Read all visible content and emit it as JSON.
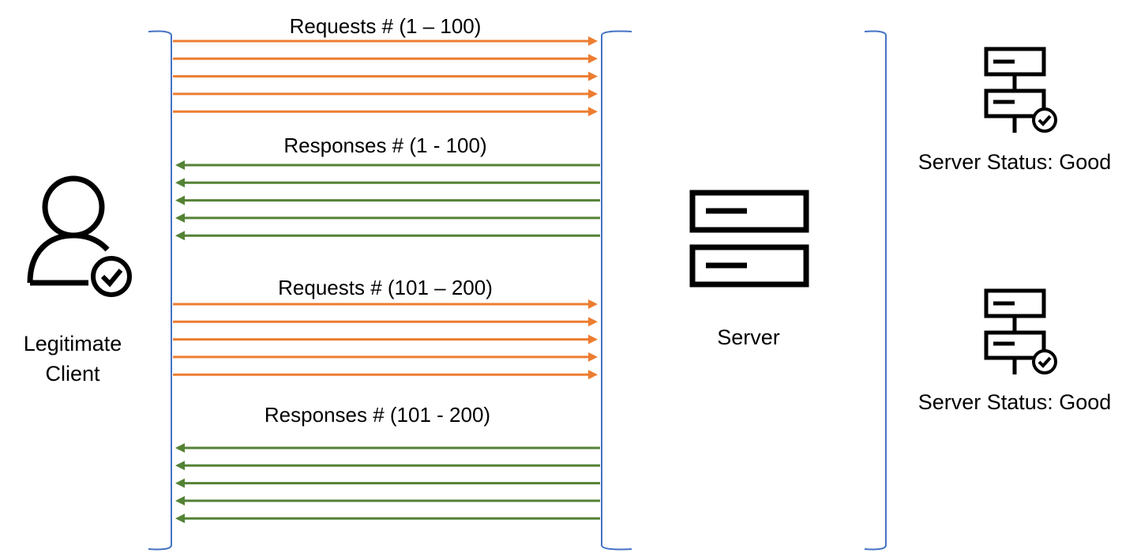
{
  "colors": {
    "request": "#ED7D31",
    "response": "#548235",
    "bracket": "#4472C4",
    "icon": "#000000"
  },
  "client": {
    "icon": "user-check-icon",
    "label_line1": "Legitimate",
    "label_line2": "Client"
  },
  "server": {
    "icon": "server-icon",
    "label": "Server"
  },
  "flows": [
    {
      "label": "Requests # (1 – 100)",
      "direction": "to-server",
      "kind": "request",
      "arrows": 5
    },
    {
      "label": "Responses # (1 - 100)",
      "direction": "to-client",
      "kind": "response",
      "arrows": 5
    },
    {
      "label": "Requests # (101 – 200)",
      "direction": "to-server",
      "kind": "request",
      "arrows": 5
    },
    {
      "label": "Responses # (101 - 200)",
      "direction": "to-client",
      "kind": "response",
      "arrows": 5
    }
  ],
  "statuses": [
    {
      "icon": "server-status-check-icon",
      "label": "Server Status: Good"
    },
    {
      "icon": "server-status-check-icon",
      "label": "Server Status: Good"
    }
  ]
}
